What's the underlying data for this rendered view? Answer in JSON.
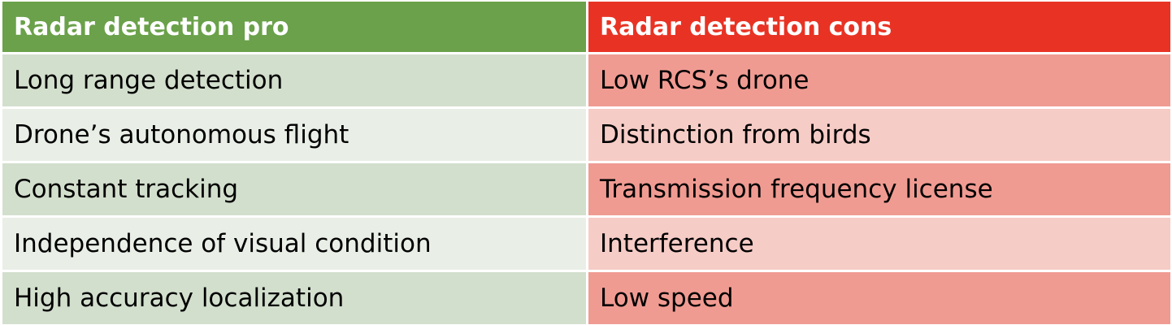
{
  "table": {
    "headers": {
      "pro": "Radar detection pro",
      "cons": "Radar detection cons"
    },
    "rows": [
      {
        "pro": "Long range detection",
        "con": "Low RCS’s drone"
      },
      {
        "pro": "Drone’s autonomous flight",
        "con": "Distinction from birds"
      },
      {
        "pro": "Constant tracking",
        "con": "Transmission frequency license"
      },
      {
        "pro": "Independence of visual condition",
        "con": "Interference"
      },
      {
        "pro": "High accuracy localization",
        "con": "Low speed"
      }
    ]
  },
  "colors": {
    "pro_header": "#6aa14a",
    "cons_header": "#e83324",
    "pro_row_dark": "#d3dfcd",
    "pro_row_light": "#e9efe7",
    "con_row_dark": "#f09b92",
    "con_row_light": "#f6ccc6"
  }
}
